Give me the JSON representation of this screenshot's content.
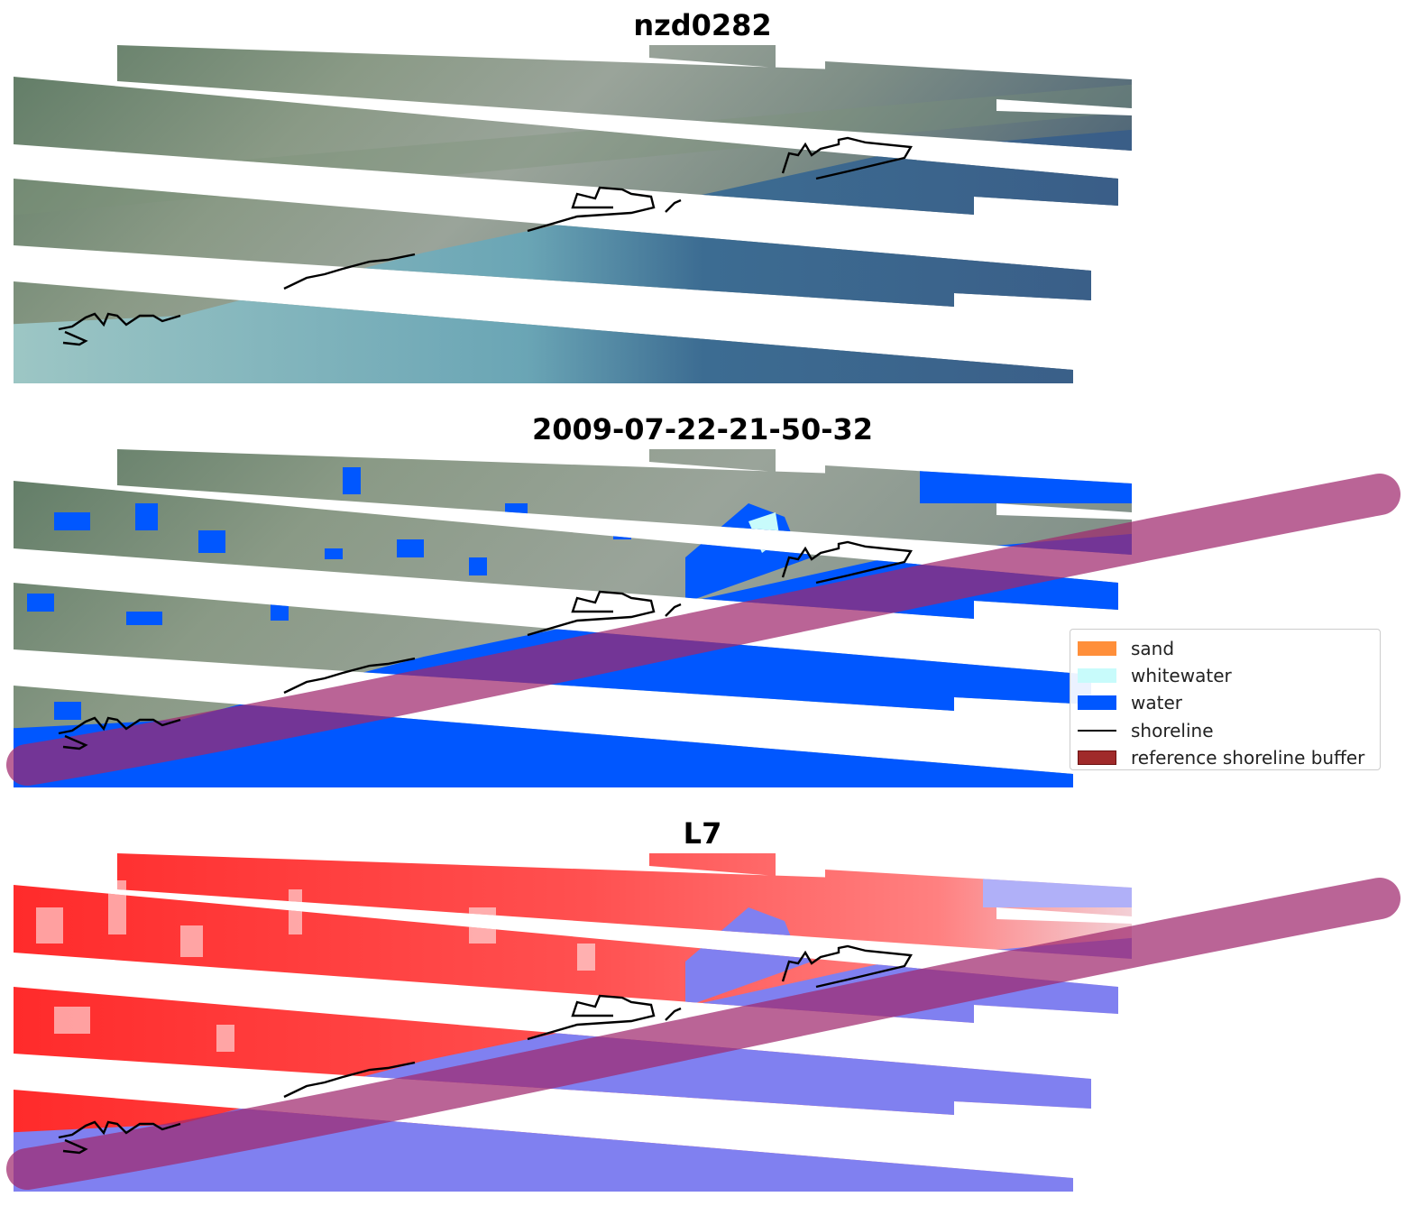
{
  "panels": [
    {
      "id": "image",
      "title": "nzd0282"
    },
    {
      "id": "classified",
      "title": "2009-07-22-21-50-32"
    },
    {
      "id": "index",
      "title": "L7"
    }
  ],
  "legend": {
    "items": [
      {
        "label": "sand",
        "color": "#ff8f3a",
        "kind": "patch"
      },
      {
        "label": "whitewater",
        "color": "#c8fbfb",
        "kind": "patch"
      },
      {
        "label": "water",
        "color": "#0057ff",
        "kind": "patch"
      },
      {
        "label": "shoreline",
        "color": "#000000",
        "kind": "line"
      },
      {
        "label": "reference shoreline buffer",
        "color": "#a02a2a",
        "kind": "patch"
      }
    ]
  },
  "colors": {
    "land": "#6e8a6a",
    "water_image": "#5f97a6",
    "water_deep": "#3e6a8e",
    "water_class": "#0057ff",
    "buffer": "#a0286e",
    "index_land": "#ff2a2a",
    "index_water": "#8080f0"
  }
}
